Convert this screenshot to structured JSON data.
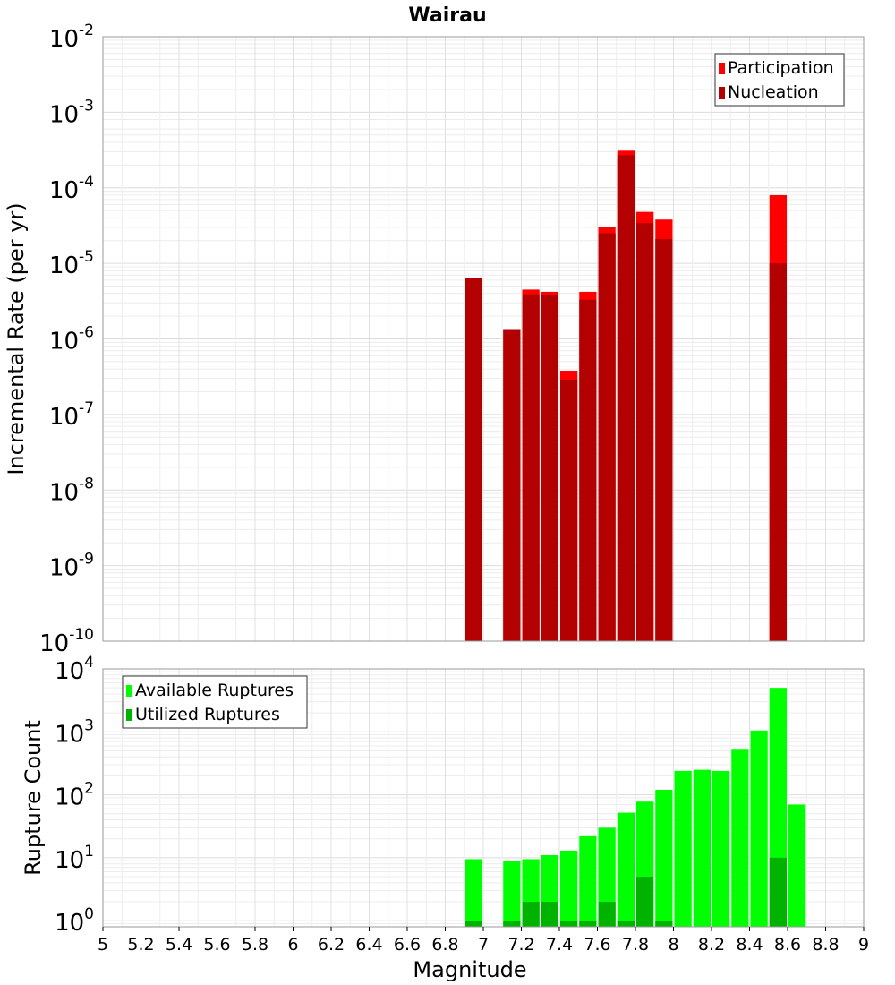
{
  "chart_data": [
    {
      "type": "bar",
      "title": "Wairau",
      "ylabel": "Incremental Rate (per yr)",
      "xlabel": "",
      "yscale": "log",
      "ylim": [
        1e-10,
        0.01
      ],
      "xlim": [
        5,
        9
      ],
      "bar_width": 0.1,
      "grid": true,
      "legend_position": "top-right",
      "y_ticks": [
        {
          "base": "10",
          "exp": "-10",
          "value": 1e-10
        },
        {
          "base": "10",
          "exp": "-9",
          "value": 1e-09
        },
        {
          "base": "10",
          "exp": "-8",
          "value": 1e-08
        },
        {
          "base": "10",
          "exp": "-7",
          "value": 1e-07
        },
        {
          "base": "10",
          "exp": "-6",
          "value": 1e-06
        },
        {
          "base": "10",
          "exp": "-5",
          "value": 1e-05
        },
        {
          "base": "10",
          "exp": "-4",
          "value": 0.0001
        },
        {
          "base": "10",
          "exp": "-3",
          "value": 0.001
        },
        {
          "base": "10",
          "exp": "-2",
          "value": 0.01
        }
      ],
      "x": [
        6.95,
        7.15,
        7.25,
        7.35,
        7.45,
        7.55,
        7.65,
        7.75,
        7.85,
        7.95,
        8.55
      ],
      "series": [
        {
          "name": "Participation",
          "color": "#ff0000",
          "values": [
            6.3e-06,
            1.35e-06,
            4.5e-06,
            4.2e-06,
            3.8e-07,
            4.2e-06,
            3e-05,
            0.00031,
            4.8e-05,
            3.8e-05,
            8e-05
          ]
        },
        {
          "name": "Nucleation",
          "color": "#b30000",
          "values": [
            6.3e-06,
            1.35e-06,
            3.9e-06,
            3.8e-06,
            2.9e-07,
            3.3e-06,
            2.5e-05,
            0.00027,
            3.4e-05,
            2.1e-05,
            1e-05
          ]
        }
      ]
    },
    {
      "type": "bar",
      "title": "",
      "ylabel": "Rupture Count",
      "xlabel": "Magnitude",
      "yscale": "log",
      "ylim": [
        0.8,
        10000
      ],
      "xlim": [
        5,
        9
      ],
      "bar_width": 0.1,
      "grid": true,
      "legend_position": "top-left",
      "y_ticks": [
        {
          "base": "10",
          "exp": "0",
          "value": 1
        },
        {
          "base": "10",
          "exp": "1",
          "value": 10
        },
        {
          "base": "10",
          "exp": "2",
          "value": 100
        },
        {
          "base": "10",
          "exp": "3",
          "value": 1000
        },
        {
          "base": "10",
          "exp": "4",
          "value": 10000
        }
      ],
      "x_ticks": [
        "5",
        "5.2",
        "5.4",
        "5.6",
        "5.8",
        "6",
        "6.2",
        "6.4",
        "6.6",
        "6.8",
        "7",
        "7.2",
        "7.4",
        "7.6",
        "7.8",
        "8",
        "8.2",
        "8.4",
        "8.6",
        "8.8",
        "9"
      ],
      "x": [
        6.95,
        7.15,
        7.25,
        7.35,
        7.45,
        7.55,
        7.65,
        7.75,
        7.85,
        7.95,
        8.05,
        8.15,
        8.25,
        8.35,
        8.45,
        8.55,
        8.65
      ],
      "series": [
        {
          "name": "Available Ruptures",
          "color": "#00ff00",
          "values": [
            9.5,
            9,
            9.5,
            11,
            13,
            22,
            30,
            52,
            78,
            120,
            240,
            250,
            240,
            520,
            1050,
            5000,
            70
          ]
        },
        {
          "name": "Utilized Ruptures",
          "color": "#00b300",
          "values": [
            1,
            1,
            2,
            2,
            1,
            1,
            2,
            1,
            5,
            1,
            0,
            0,
            0,
            0,
            0,
            10,
            0
          ]
        }
      ]
    }
  ]
}
